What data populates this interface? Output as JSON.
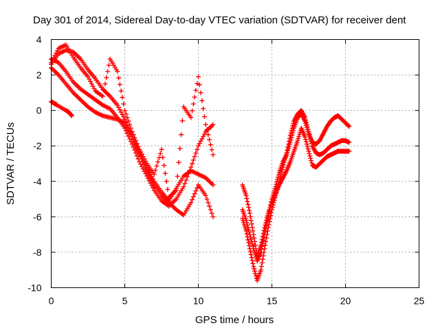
{
  "chart_data": {
    "type": "scatter",
    "title": "Day 301 of 2014, Sidereal Day-to-day VTEC variation (SDTVAR) for receiver dent",
    "xlabel": "GPS time / hours",
    "ylabel": "SDTVAR / TECUs",
    "xlim": [
      0,
      25
    ],
    "ylim": [
      -10,
      4
    ],
    "xticks": [
      "0",
      "5",
      "10",
      "15",
      "20",
      "25"
    ],
    "yticks": [
      "4",
      "2",
      "0",
      "-2",
      "-4",
      "-6",
      "-8",
      "-10"
    ],
    "grid": true,
    "marker": "+",
    "color": "#ff0000",
    "series": [
      {
        "x": [
          0,
          0.5,
          1,
          1.5,
          2,
          2.5,
          3,
          3.5,
          4,
          4.5,
          5,
          5.5,
          6,
          6.5,
          7,
          7.5,
          8,
          8.5,
          9,
          9.5,
          10,
          10.5,
          11
        ],
        "y": [
          2.6,
          3.2,
          3.4,
          3.3,
          2.9,
          2.3,
          1.8,
          1.2,
          0.8,
          0.3,
          -0.5,
          -1.5,
          -2.5,
          -3.2,
          -4.0,
          -4.6,
          -5.1,
          -4.4,
          -3.7,
          -3.4,
          -3.6,
          -3.8,
          -4.2
        ]
      },
      {
        "x": [
          0,
          0.5,
          1,
          1.5,
          2,
          2.5,
          3,
          3.5,
          4,
          4.5,
          5,
          5.5,
          6,
          6.5,
          7,
          7.5,
          8,
          8.5,
          9,
          9.5,
          10,
          10.5,
          11
        ],
        "y": [
          2.9,
          2.7,
          2.2,
          1.6,
          1.2,
          0.9,
          0.6,
          0.3,
          0.1,
          -0.4,
          -1.0,
          -1.9,
          -2.9,
          -3.7,
          -4.5,
          -5.1,
          -5.4,
          -5.0,
          -4.3,
          -3.2,
          -2.0,
          -1.2,
          -0.8
        ]
      },
      {
        "x": [
          0,
          0.5,
          1,
          1.5,
          2,
          2.5,
          3,
          3.5,
          4,
          4.5,
          5,
          5.5,
          6,
          6.5,
          7,
          7.5,
          8,
          8.5,
          9,
          9.5,
          10,
          10.5,
          11
        ],
        "y": [
          2.4,
          2.0,
          1.5,
          1.0,
          0.6,
          0.2,
          -0.1,
          -0.3,
          -0.4,
          -0.5,
          -0.7,
          -1.5,
          -2.4,
          -3.4,
          -4.2,
          -4.8,
          -5.2,
          -5.6,
          -5.9,
          -5.2,
          -4.2,
          -4.8,
          -6.0
        ]
      },
      {
        "x": [
          0,
          0.5,
          1,
          1.5,
          2,
          2.5,
          3,
          3.5,
          4,
          4.5,
          5,
          5.5,
          6,
          6.5,
          7,
          7.5,
          8,
          8.5,
          9,
          9.5,
          10,
          10.5,
          11
        ],
        "y": [
          2.7,
          3.5,
          3.7,
          3.0,
          2.4,
          1.9,
          1.1,
          0.8,
          2.9,
          2.2,
          0.0,
          -1.2,
          -2.2,
          -3.0,
          -3.6,
          -2.2,
          -4.9,
          -4.5,
          0.2,
          -0.4,
          1.9,
          -0.8,
          -2.5
        ]
      },
      {
        "x": [
          0,
          0.2,
          0.4,
          1.0,
          1.2,
          1.4
        ],
        "y": [
          0.5,
          0.4,
          0.3,
          0.0,
          -0.1,
          -0.3
        ]
      },
      {
        "x": [
          13,
          13.25,
          13.5,
          13.75,
          14,
          14.25,
          14.5,
          14.75,
          15,
          15.25,
          15.5,
          15.75,
          16,
          16.25,
          16.5,
          16.75,
          17,
          17.25,
          17.5,
          17.75,
          18,
          18.25,
          18.5,
          18.75,
          19,
          19.25,
          19.5,
          19.75,
          20,
          20.25
        ],
        "y": [
          -5.6,
          -6.2,
          -7.0,
          -7.8,
          -8.5,
          -8.0,
          -7.0,
          -6.0,
          -5.0,
          -4.3,
          -3.5,
          -2.9,
          -2.5,
          -1.8,
          -1.0,
          -0.4,
          -0.2,
          -0.6,
          -1.3,
          -1.8,
          -1.9,
          -1.7,
          -1.3,
          -0.9,
          -0.6,
          -0.4,
          -0.3,
          -0.5,
          -0.7,
          -0.9
        ]
      },
      {
        "x": [
          13,
          13.25,
          13.5,
          13.75,
          14,
          14.25,
          14.5,
          14.75,
          15,
          15.25,
          15.5,
          15.75,
          16,
          16.25,
          16.5,
          16.75,
          17,
          17.25,
          17.5,
          17.75,
          18,
          18.25,
          18.5,
          18.75,
          19,
          19.25,
          19.5,
          19.75,
          20,
          20.25
        ],
        "y": [
          -6.1,
          -6.8,
          -7.8,
          -8.8,
          -9.6,
          -9.0,
          -7.8,
          -6.6,
          -5.6,
          -4.8,
          -4.0,
          -3.2,
          -2.4,
          -1.4,
          -0.6,
          -0.2,
          0.0,
          -0.4,
          -1.2,
          -2.0,
          -2.4,
          -2.5,
          -2.4,
          -2.2,
          -2.0,
          -1.9,
          -1.8,
          -1.7,
          -1.7,
          -1.8
        ]
      },
      {
        "x": [
          13,
          13.25,
          13.5,
          13.75,
          14,
          14.25,
          14.5,
          14.75,
          15,
          15.25,
          15.5,
          15.75,
          16,
          16.25,
          16.5,
          16.75,
          17,
          17.25,
          17.5,
          17.75,
          18,
          18.25,
          18.5,
          18.75,
          19,
          19.25,
          19.5,
          19.75,
          20,
          20.25
        ],
        "y": [
          -4.2,
          -4.8,
          -5.8,
          -7.0,
          -8.2,
          -7.6,
          -6.6,
          -5.8,
          -5.2,
          -4.7,
          -4.2,
          -3.8,
          -3.4,
          -2.9,
          -2.3,
          -1.7,
          -1.0,
          -1.5,
          -2.3,
          -3.1,
          -3.2,
          -3.0,
          -2.8,
          -2.6,
          -2.5,
          -2.4,
          -2.3,
          -2.3,
          -2.3,
          -2.3
        ]
      }
    ]
  }
}
